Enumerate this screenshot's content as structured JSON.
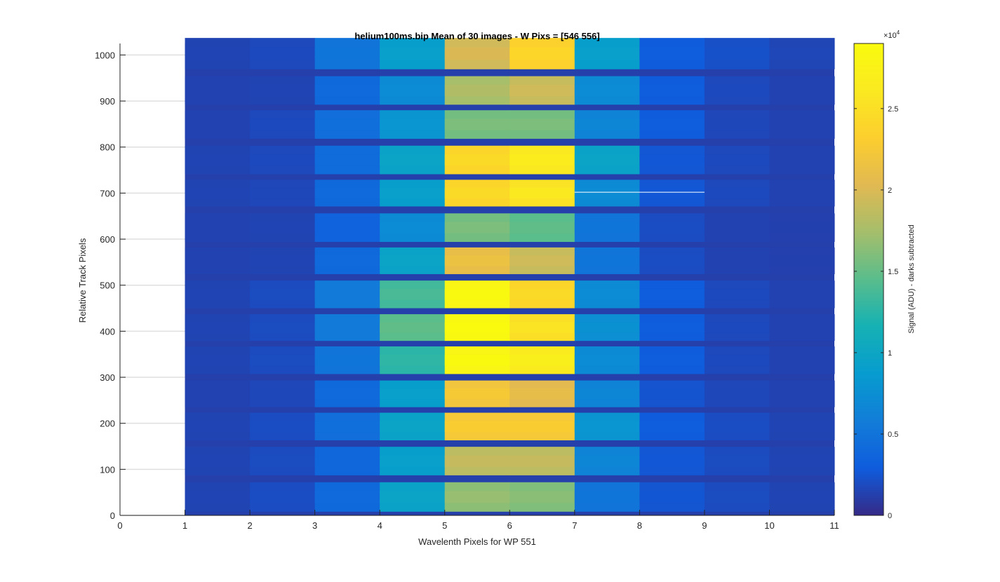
{
  "chart_data": {
    "type": "heatmap",
    "title": "helium100ms.bip  Mean of 30 images - W Pixs = [546  556]",
    "xlabel": "Wavelenth Pixels for WP 551",
    "ylabel": "Relative Track Pixels",
    "colorbar_label": "Signal (ADU) - darks subtracted",
    "colorbar_exponent": "×10",
    "colorbar_exponent_power": "4",
    "colorbar_scale": 10000,
    "clim": [
      0,
      29000
    ],
    "xlim": [
      0,
      11
    ],
    "ylim": [
      0,
      1025
    ],
    "x_ticks": [
      "0",
      "1",
      "2",
      "3",
      "4",
      "5",
      "6",
      "7",
      "8",
      "9",
      "10",
      "11"
    ],
    "y_ticks": [
      "0",
      "100",
      "200",
      "300",
      "400",
      "500",
      "600",
      "700",
      "800",
      "900",
      "1000"
    ],
    "colorbar_ticks": [
      "0",
      "0.5",
      "1",
      "1.5",
      "2",
      "2.5"
    ],
    "colormap": "parula",
    "grid": "horizontal",
    "columns_x": [
      1,
      2,
      3,
      4,
      5,
      6,
      7,
      8,
      9,
      10
    ],
    "background_level": 1200,
    "tracks": [
      {
        "center": 1003,
        "half_height": 34,
        "values": [
          1500,
          1800,
          5000,
          9000,
          19500,
          23500,
          9000,
          3000,
          2200,
          1600
        ]
      },
      {
        "center": 923,
        "half_height": 31,
        "values": [
          1400,
          1500,
          4000,
          7000,
          17500,
          19000,
          7000,
          3000,
          1800,
          1400
        ]
      },
      {
        "center": 849,
        "half_height": 31,
        "values": [
          1400,
          1800,
          4500,
          8000,
          15500,
          15500,
          6500,
          3000,
          1700,
          1400
        ]
      },
      {
        "center": 772,
        "half_height": 31,
        "values": [
          1500,
          1800,
          4200,
          9500,
          24000,
          26000,
          9500,
          2600,
          1800,
          1400
        ]
      },
      {
        "center": 700,
        "half_height": 29,
        "values": [
          1500,
          1700,
          4000,
          9000,
          24000,
          25500,
          7000,
          2600,
          1800,
          1400
        ]
      },
      {
        "center": 625,
        "half_height": 31,
        "values": [
          1400,
          1500,
          3500,
          7000,
          15500,
          14500,
          5000,
          2000,
          1400,
          1300
        ]
      },
      {
        "center": 553,
        "half_height": 29,
        "values": [
          1400,
          1500,
          4000,
          9500,
          21000,
          19000,
          5000,
          2000,
          1400,
          1300
        ]
      },
      {
        "center": 480,
        "half_height": 30,
        "values": [
          1500,
          1900,
          5500,
          13500,
          28000,
          24000,
          7000,
          3000,
          1800,
          1400
        ]
      },
      {
        "center": 408,
        "half_height": 29,
        "values": [
          1500,
          1900,
          5500,
          14500,
          28500,
          25000,
          7500,
          3000,
          1800,
          1400
        ]
      },
      {
        "center": 337,
        "half_height": 30,
        "values": [
          1500,
          1900,
          5000,
          12500,
          28000,
          26500,
          7000,
          3000,
          1800,
          1400
        ]
      },
      {
        "center": 264,
        "half_height": 29,
        "values": [
          1400,
          1700,
          4000,
          9000,
          22000,
          20500,
          6500,
          2400,
          1700,
          1400
        ]
      },
      {
        "center": 193,
        "half_height": 30,
        "values": [
          1500,
          2000,
          4500,
          9500,
          22500,
          22500,
          8000,
          3000,
          2000,
          1500
        ]
      },
      {
        "center": 118,
        "half_height": 31,
        "values": [
          1500,
          1900,
          3800,
          9000,
          18500,
          18500,
          6500,
          2600,
          1900,
          1500
        ]
      },
      {
        "center": 40,
        "half_height": 32,
        "values": [
          1500,
          2000,
          4000,
          9500,
          16500,
          16000,
          5000,
          2500,
          1900,
          1500
        ]
      }
    ],
    "overlay_line": {
      "x": [
        7,
        9
      ],
      "y": [
        702,
        702
      ],
      "color": "#ffffff"
    }
  }
}
